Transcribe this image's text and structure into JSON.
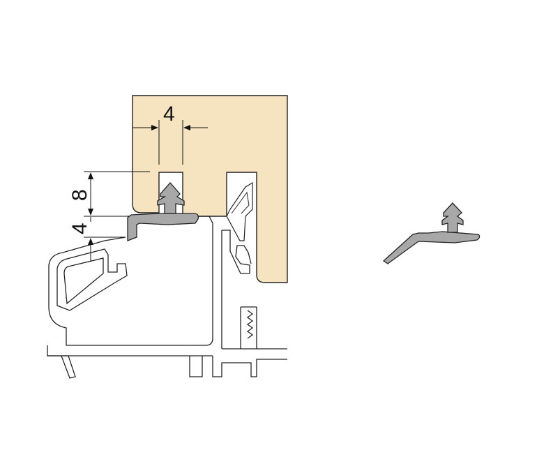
{
  "diagram": {
    "dimensions": {
      "top_width": "4",
      "vertical_upper": "8",
      "vertical_lower": "4"
    },
    "colors": {
      "wood": "#f6e3bf",
      "gasket": "#a8a8a8",
      "outline": "#222222"
    }
  }
}
